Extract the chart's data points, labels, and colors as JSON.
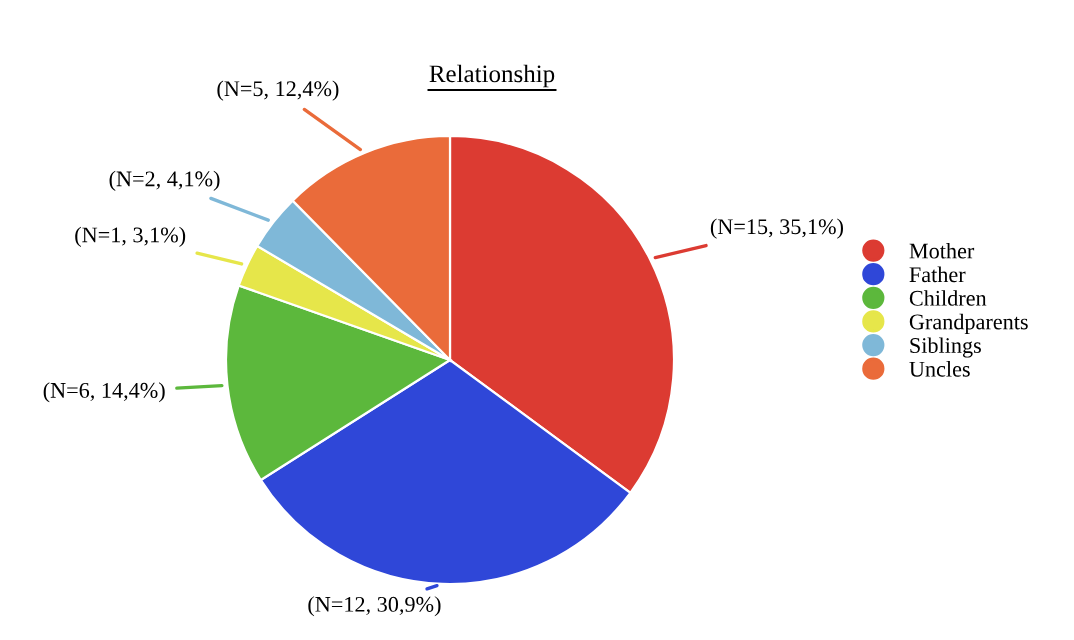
{
  "chart_data": {
    "type": "pie",
    "title": "Relationship",
    "categories": [
      "Mother",
      "Father",
      "Children",
      "Grandparents",
      "Siblings",
      "Uncles"
    ],
    "values": [
      35.1,
      30.9,
      14.4,
      3.1,
      4.1,
      12.4
    ],
    "colors": [
      "#dc3b32",
      "#2f47d8",
      "#5cb83c",
      "#e6e64a",
      "#7fb8d8",
      "#ea6b3a"
    ],
    "value_labels": [
      "(N=15, 35,1%)",
      "(N=12, 30,9%)",
      "(N=6, 14,4%)",
      "(N=1, 3,1%)",
      "(N=2, 4,1%)",
      "(N=5, 12,4%)"
    ],
    "legend": "right"
  }
}
